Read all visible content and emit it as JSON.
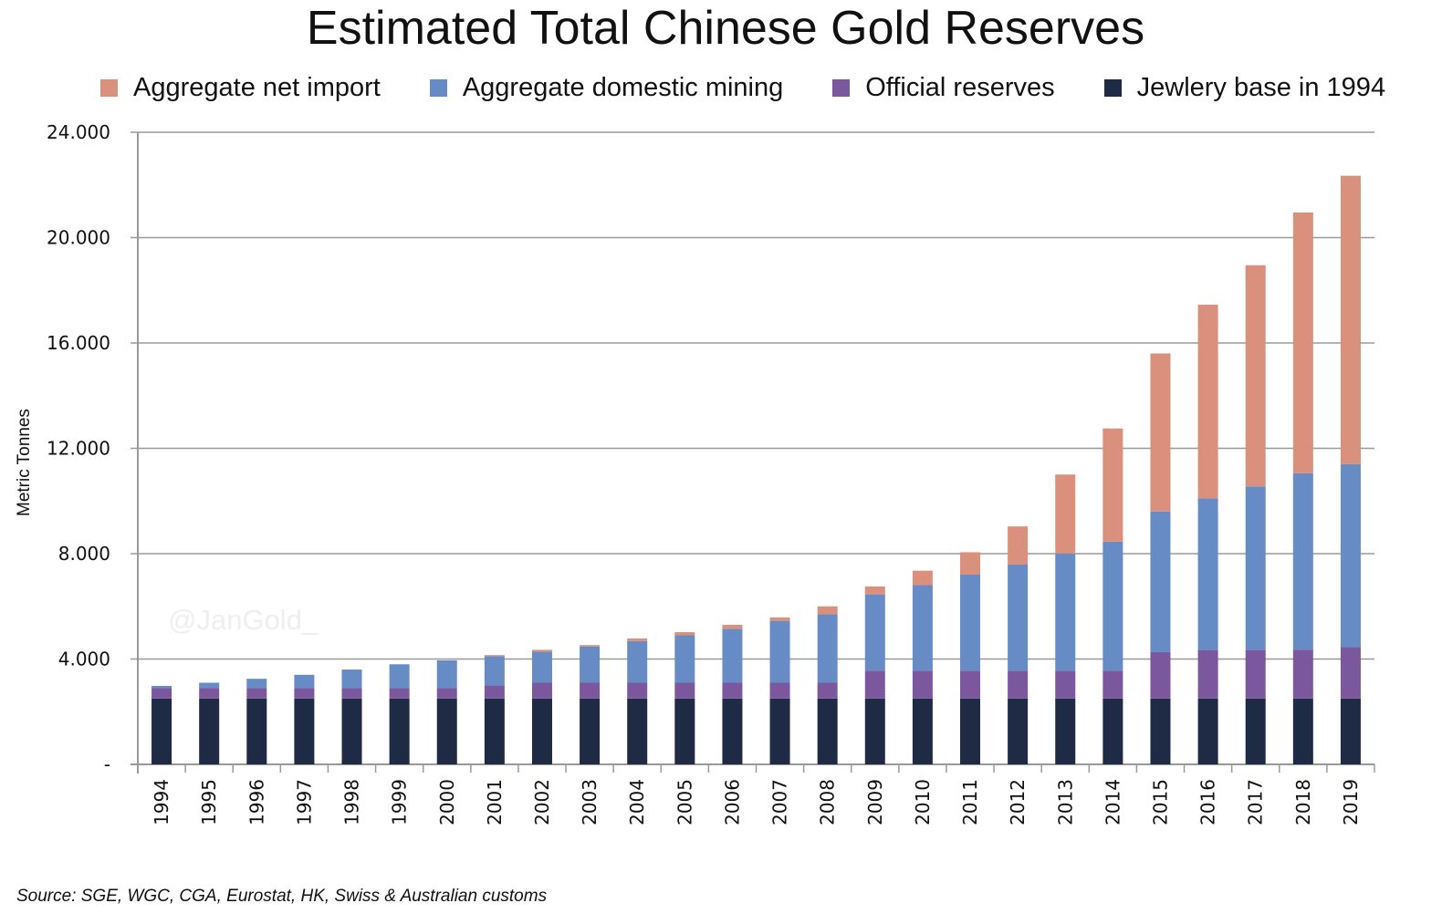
{
  "chart_data": {
    "type": "bar",
    "stacked": true,
    "title": "Estimated Total Chinese Gold Reserves",
    "xlabel": "",
    "ylabel": "Metric Tonnes",
    "ylim": [
      0,
      24000
    ],
    "yticks": [
      0,
      4000,
      8000,
      12000,
      16000,
      20000,
      24000
    ],
    "ytick_labels": [
      "-",
      "4.000",
      "8.000",
      "12.000",
      "16.000",
      "20.000",
      "24.000"
    ],
    "grid": true,
    "legend_position": "top",
    "categories": [
      "1994",
      "1995",
      "1996",
      "1997",
      "1998",
      "1999",
      "2000",
      "2001",
      "2002",
      "2003",
      "2004",
      "2005",
      "2006",
      "2007",
      "2008",
      "2009",
      "2010",
      "2011",
      "2012",
      "2013",
      "2014",
      "2015",
      "2016",
      "2017",
      "2018",
      "2019"
    ],
    "series": [
      {
        "name": "Jewlery base in 1994",
        "color": "#1f2a44",
        "values": [
          2500,
          2500,
          2500,
          2500,
          2500,
          2500,
          2500,
          2500,
          2500,
          2500,
          2500,
          2500,
          2500,
          2500,
          2500,
          2500,
          2500,
          2500,
          2500,
          2500,
          2500,
          2500,
          2500,
          2500,
          2500,
          2500
        ]
      },
      {
        "name": "Official reserves",
        "color": "#7b579e",
        "values": [
          395,
          395,
          395,
          395,
          395,
          395,
          395,
          500,
          600,
          600,
          600,
          600,
          600,
          600,
          600,
          1054,
          1054,
          1054,
          1054,
          1054,
          1054,
          1762,
          1842,
          1842,
          1852,
          1948
        ]
      },
      {
        "name": "Aggregate domestic mining",
        "color": "#678bc4",
        "values": [
          85,
          205,
          355,
          505,
          705,
          905,
          1055,
          1110,
          1180,
          1370,
          1580,
          1800,
          2050,
          2350,
          2600,
          2900,
          3250,
          3650,
          4030,
          4450,
          4900,
          5340,
          5760,
          6210,
          6700,
          6950
        ]
      },
      {
        "name": "Aggregate net import",
        "color": "#d9907c",
        "values": [
          0,
          0,
          0,
          0,
          0,
          0,
          0,
          40,
          70,
          60,
          100,
          120,
          150,
          130,
          300,
          300,
          550,
          850,
          1450,
          3000,
          4300,
          6000,
          7350,
          8400,
          9900,
          10950
        ]
      }
    ],
    "legend_order": [
      "Aggregate net import",
      "Aggregate domestic mining",
      "Official reserves",
      "Jewlery base in 1994"
    ],
    "watermark": "@JanGold_",
    "source": "Source: SGE, WGC, CGA, Eurostat, HK, Swiss & Australian customs"
  }
}
